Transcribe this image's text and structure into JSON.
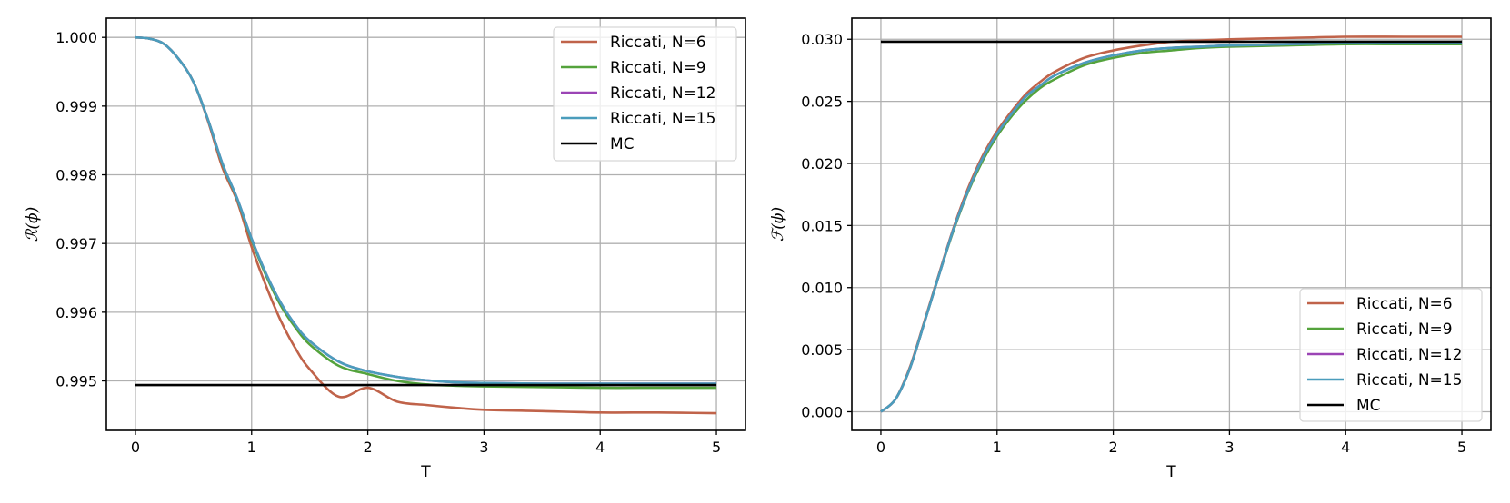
{
  "chart_data": [
    {
      "type": "line",
      "title": "",
      "xlabel": "T",
      "ylabel": "ℛ(ϕ)",
      "xlim": [
        -0.25,
        5.25
      ],
      "ylim": [
        0.99428,
        1.00028
      ],
      "xticks": [
        0,
        1,
        2,
        3,
        4,
        5
      ],
      "yticks": [
        0.995,
        0.996,
        0.997,
        0.998,
        0.999,
        1.0
      ],
      "ytick_labels": [
        "0.995",
        "0.996",
        "0.997",
        "0.998",
        "0.999",
        "1.000"
      ],
      "grid": true,
      "legend_position": "upper right",
      "x": [
        0,
        0.125,
        0.25,
        0.375,
        0.5,
        0.625,
        0.75,
        0.875,
        1.0,
        1.125,
        1.25,
        1.375,
        1.5,
        1.75,
        2.0,
        2.25,
        2.5,
        2.75,
        3.0,
        3.5,
        4.0,
        4.5,
        5.0
      ],
      "series": [
        {
          "name": "Riccati, N=6",
          "color": "#c0634a",
          "values": [
            1.0,
            0.99998,
            0.9999,
            0.99968,
            0.99935,
            0.99878,
            0.9981,
            0.99762,
            0.99695,
            0.99638,
            0.99588,
            0.99548,
            0.99517,
            0.99477,
            0.9949,
            0.9947,
            0.99465,
            0.99461,
            0.99458,
            0.99456,
            0.99454,
            0.99454,
            0.99453
          ]
        },
        {
          "name": "Riccati, N=9",
          "color": "#54a33c",
          "values": [
            1.0,
            0.99998,
            0.9999,
            0.99968,
            0.99935,
            0.9988,
            0.99815,
            0.99765,
            0.99705,
            0.99653,
            0.9961,
            0.99578,
            0.99553,
            0.99522,
            0.9951,
            0.995,
            0.99495,
            0.99493,
            0.99492,
            0.99491,
            0.9949,
            0.9949,
            0.9949
          ]
        },
        {
          "name": "Riccati, N=12",
          "color": "#9b44b5",
          "values": [
            1.0,
            0.99998,
            0.9999,
            0.99968,
            0.99935,
            0.9988,
            0.99816,
            0.99766,
            0.99707,
            0.99656,
            0.99614,
            0.99582,
            0.99558,
            0.99528,
            0.99514,
            0.99506,
            0.99501,
            0.99498,
            0.99497,
            0.99496,
            0.99496,
            0.99496,
            0.99496
          ]
        },
        {
          "name": "Riccati, N=15",
          "color": "#4b9dbc",
          "values": [
            1.0,
            0.99998,
            0.9999,
            0.99968,
            0.99935,
            0.9988,
            0.99816,
            0.99766,
            0.99707,
            0.99656,
            0.99614,
            0.99582,
            0.99558,
            0.99528,
            0.99514,
            0.99506,
            0.99501,
            0.99498,
            0.99497,
            0.99496,
            0.99496,
            0.99496,
            0.99496
          ]
        },
        {
          "name": "MC",
          "color": "#000000",
          "values": [
            0.99494,
            0.99494,
            0.99494,
            0.99494,
            0.99494,
            0.99494,
            0.99494,
            0.99494,
            0.99494,
            0.99494,
            0.99494,
            0.99494,
            0.99494,
            0.99494,
            0.99494,
            0.99494,
            0.99494,
            0.99494,
            0.99494,
            0.99494,
            0.99494,
            0.99494,
            0.99494
          ]
        }
      ]
    },
    {
      "type": "line",
      "title": "",
      "xlabel": "T",
      "ylabel": "ℱ(ϕ)",
      "xlim": [
        -0.25,
        5.25
      ],
      "ylim": [
        -0.0015,
        0.0317
      ],
      "xticks": [
        0,
        1,
        2,
        3,
        4,
        5
      ],
      "yticks": [
        0.0,
        0.005,
        0.01,
        0.015,
        0.02,
        0.025,
        0.03
      ],
      "ytick_labels": [
        "0.000",
        "0.005",
        "0.010",
        "0.015",
        "0.020",
        "0.025",
        "0.030"
      ],
      "grid": true,
      "legend_position": "lower right",
      "x": [
        0,
        0.125,
        0.25,
        0.375,
        0.5,
        0.625,
        0.75,
        0.875,
        1.0,
        1.125,
        1.25,
        1.375,
        1.5,
        1.75,
        2.0,
        2.25,
        2.5,
        2.75,
        3.0,
        3.5,
        4.0,
        4.5,
        5.0
      ],
      "series": [
        {
          "name": "Riccati, N=6",
          "color": "#c0634a",
          "values": [
            0.0,
            0.001,
            0.0036,
            0.0073,
            0.0111,
            0.0148,
            0.018,
            0.0206,
            0.0226,
            0.0242,
            0.0256,
            0.0266,
            0.0274,
            0.0285,
            0.0291,
            0.0295,
            0.0298,
            0.0299,
            0.03,
            0.0301,
            0.0302,
            0.0302,
            0.0302
          ]
        },
        {
          "name": "Riccati, N=9",
          "color": "#54a33c",
          "values": [
            0.0,
            0.001,
            0.0035,
            0.0072,
            0.011,
            0.0146,
            0.0177,
            0.0202,
            0.0222,
            0.0238,
            0.0251,
            0.0261,
            0.0268,
            0.0279,
            0.0285,
            0.0289,
            0.0291,
            0.0293,
            0.0294,
            0.0295,
            0.0296,
            0.0296,
            0.0296
          ]
        },
        {
          "name": "Riccati, N=12",
          "color": "#9b44b5",
          "values": [
            0.0,
            0.001,
            0.0035,
            0.0072,
            0.011,
            0.0147,
            0.0178,
            0.0204,
            0.0224,
            0.024,
            0.0254,
            0.0263,
            0.0271,
            0.0281,
            0.0287,
            0.0291,
            0.0293,
            0.0294,
            0.0295,
            0.0296,
            0.0297,
            0.0297,
            0.0297
          ]
        },
        {
          "name": "Riccati, N=15",
          "color": "#4b9dbc",
          "values": [
            0.0,
            0.001,
            0.0035,
            0.0072,
            0.011,
            0.0147,
            0.0178,
            0.0204,
            0.0224,
            0.024,
            0.0254,
            0.0263,
            0.0271,
            0.0281,
            0.0287,
            0.0291,
            0.0293,
            0.0294,
            0.0295,
            0.0296,
            0.0297,
            0.0297,
            0.0297
          ]
        },
        {
          "name": "MC",
          "color": "#000000",
          "values": [
            0.0298,
            0.0298,
            0.0298,
            0.0298,
            0.0298,
            0.0298,
            0.0298,
            0.0298,
            0.0298,
            0.0298,
            0.0298,
            0.0298,
            0.0298,
            0.0298,
            0.0298,
            0.0298,
            0.0298,
            0.0298,
            0.0298,
            0.0298,
            0.0298,
            0.0298,
            0.0298
          ]
        }
      ]
    }
  ],
  "panels": [
    {
      "xlabel": "T",
      "ylabel_script": "ℛ",
      "ylabel_arg": "(ϕ)"
    },
    {
      "xlabel": "T",
      "ylabel_script": "ℱ",
      "ylabel_arg": "(ϕ)"
    }
  ],
  "legend": [
    "Riccati, N=6",
    "Riccati, N=9",
    "Riccati, N=12",
    "Riccati, N=15",
    "MC"
  ]
}
